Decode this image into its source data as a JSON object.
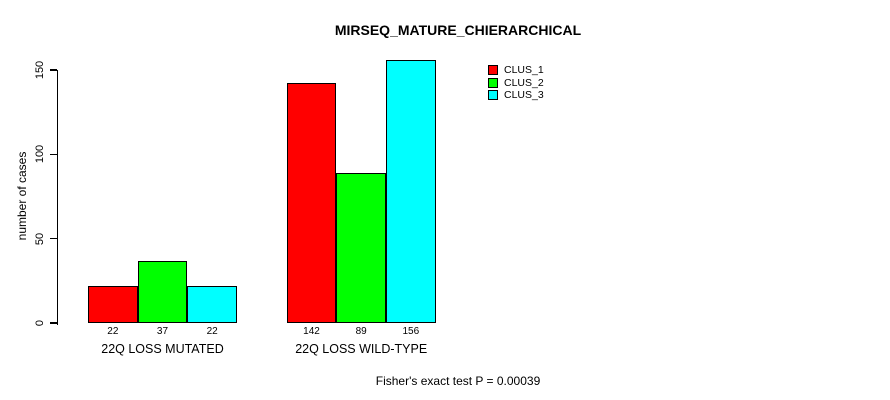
{
  "chart_data": {
    "type": "bar",
    "title": "MIRSEQ_MATURE_CHIERARCHICAL",
    "ylabel": "number of cases",
    "xlabel": "",
    "categories": [
      "22Q LOSS MUTATED",
      "22Q LOSS WILD-TYPE"
    ],
    "series": [
      {
        "name": "CLUS_1",
        "color": "#ff0000",
        "values": [
          22,
          142
        ]
      },
      {
        "name": "CLUS_2",
        "color": "#00ff00",
        "values": [
          37,
          89
        ]
      },
      {
        "name": "CLUS_3",
        "color": "#00ffff",
        "values": [
          22,
          156
        ]
      }
    ],
    "bar_value_labels": [
      [
        "22",
        "37",
        "22"
      ],
      [
        "142",
        "89",
        "156"
      ]
    ],
    "yticks": [
      "0",
      "50",
      "100",
      "150"
    ],
    "ytick_values": [
      0,
      50,
      100,
      150
    ],
    "ylim": [
      0,
      150
    ],
    "grid": false,
    "legend_position": "top-right",
    "annotation": "Fisher's exact test P = 0.00039",
    "colors": {
      "bar_outline": "#000000",
      "axis": "#000000",
      "background": "#ffffff"
    }
  }
}
